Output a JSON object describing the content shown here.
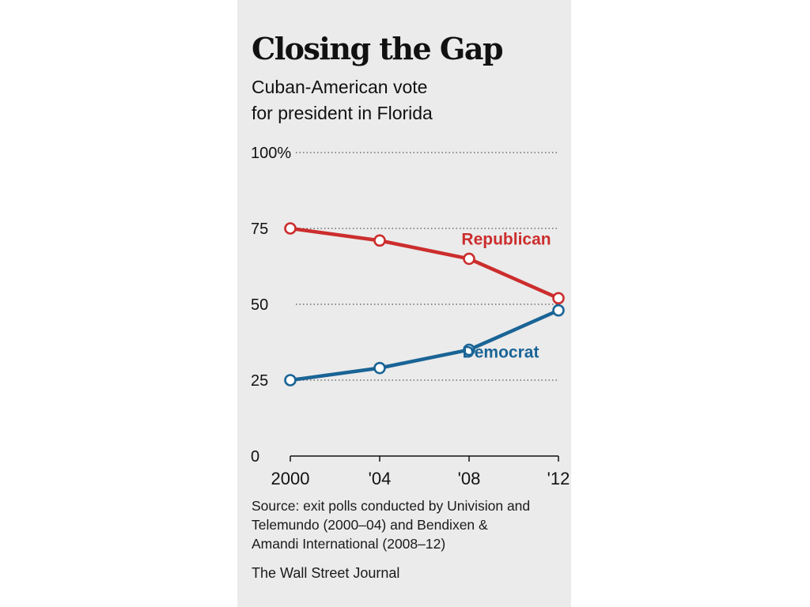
{
  "chart_data": {
    "type": "line",
    "title": "Closing the Gap",
    "subtitle_lines": [
      "Cuban-American vote",
      "for president in Florida"
    ],
    "categories": [
      "2000",
      "'04",
      "'08",
      "'12"
    ],
    "y_ticks": [
      "100%",
      "75",
      "50",
      "25",
      "0"
    ],
    "ylim": [
      0,
      100
    ],
    "grid": "dotted horizontal",
    "series": [
      {
        "name": "Republican",
        "values": [
          75,
          71,
          65,
          52
        ],
        "color": "#cc2d2d"
      },
      {
        "name": "Democrat",
        "values": [
          25,
          29,
          35,
          48
        ],
        "color": "#1a6496"
      }
    ]
  },
  "source_lines": [
    "Source: exit polls conducted by Univision and",
    "Telemundo (2000–04) and Bendixen &",
    "Amandi International (2008–12)"
  ],
  "credit": "The Wall Street Journal"
}
